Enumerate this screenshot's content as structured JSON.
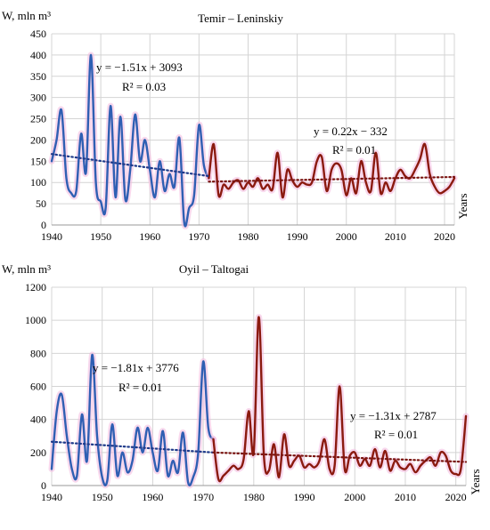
{
  "chart_data": [
    {
      "type": "line",
      "title": "Temir – Leninskiy",
      "ylabel": "W, mln m³",
      "xlabel": "Years",
      "xlim": [
        1940,
        2022
      ],
      "ylim": [
        0,
        450
      ],
      "yticks": [
        0,
        50,
        100,
        150,
        200,
        250,
        300,
        350,
        400,
        450
      ],
      "xticks": [
        1940,
        1950,
        1960,
        1970,
        1980,
        1990,
        2000,
        2010,
        2020
      ],
      "grid": true,
      "colors": {
        "early": "#2f5fb3",
        "late": "#8b1a0f",
        "trend": "#1f3a8a",
        "trend_late": "#7a1410",
        "glow": "#f2b8de"
      },
      "series": [
        {
          "x": [
            1940,
            1941,
            1942,
            1943,
            1944,
            1945,
            1946,
            1947,
            1948,
            1949,
            1950,
            1951,
            1952,
            1953,
            1954,
            1955,
            1956,
            1957,
            1958,
            1959,
            1960,
            1961,
            1962,
            1963,
            1964,
            1965,
            1966,
            1967,
            1968,
            1969,
            1970,
            1971,
            1972
          ],
          "values": [
            150,
            200,
            270,
            110,
            75,
            80,
            215,
            125,
            400,
            100,
            55,
            40,
            280,
            65,
            255,
            60,
            130,
            260,
            150,
            200,
            130,
            65,
            150,
            80,
            120,
            90,
            205,
            5,
            40,
            70,
            235,
            140,
            110
          ]
        },
        {
          "x": [
            1972,
            1973,
            1974,
            1975,
            1976,
            1977,
            1978,
            1979,
            1980,
            1981,
            1982,
            1983,
            1984,
            1985,
            1986,
            1987,
            1988,
            1989,
            1990,
            1991,
            1992,
            1993,
            1994,
            1995,
            1996,
            1997,
            1998,
            1999,
            2000,
            2001,
            2002,
            2003,
            2004,
            2005,
            2006,
            2007,
            2008,
            2009,
            2010,
            2011,
            2012,
            2013,
            2014,
            2015,
            2016,
            2017,
            2018,
            2019,
            2020,
            2021,
            2022
          ],
          "values": [
            110,
            190,
            70,
            95,
            85,
            100,
            105,
            85,
            100,
            90,
            110,
            85,
            95,
            85,
            170,
            65,
            130,
            105,
            90,
            100,
            95,
            100,
            150,
            160,
            80,
            130,
            145,
            130,
            70,
            110,
            75,
            150,
            100,
            80,
            170,
            75,
            100,
            80,
            110,
            130,
            115,
            110,
            130,
            155,
            190,
            120,
            90,
            75,
            80,
            90,
            110
          ]
        }
      ],
      "trends": [
        {
          "x": [
            1940,
            1972
          ],
          "values": [
            167,
            115
          ],
          "equation": "y = −1.51x + 3093",
          "r2": "R² = 0.03"
        },
        {
          "x": [
            1972,
            2022
          ],
          "values": [
            102,
            113
          ],
          "equation": "y = 0.22x − 332",
          "r2": "R² = 0.01"
        }
      ]
    },
    {
      "type": "line",
      "title": "Oyil – Taltogai",
      "ylabel": "W, mln m³",
      "xlabel": "Years",
      "xlim": [
        1940,
        2022
      ],
      "ylim": [
        0,
        1200
      ],
      "yticks": [
        0,
        200,
        400,
        600,
        800,
        1000,
        1200
      ],
      "xticks": [
        1940,
        1950,
        1960,
        1970,
        1980,
        1990,
        2000,
        2010,
        2020
      ],
      "grid": true,
      "colors": {
        "early": "#2f5fb3",
        "late": "#8b1a0f",
        "trend": "#1f3a8a",
        "trend_late": "#7a1410",
        "glow": "#f2b8de"
      },
      "series": [
        {
          "x": [
            1940,
            1941,
            1942,
            1943,
            1944,
            1945,
            1946,
            1947,
            1948,
            1949,
            1950,
            1951,
            1952,
            1953,
            1954,
            1955,
            1956,
            1957,
            1958,
            1959,
            1960,
            1961,
            1962,
            1963,
            1964,
            1965,
            1966,
            1967,
            1968,
            1969,
            1970,
            1971,
            1972
          ],
          "values": [
            100,
            450,
            550,
            300,
            100,
            60,
            430,
            150,
            790,
            300,
            50,
            30,
            370,
            60,
            200,
            80,
            150,
            350,
            200,
            350,
            200,
            90,
            330,
            60,
            150,
            80,
            320,
            20,
            50,
            200,
            750,
            350,
            280
          ]
        },
        {
          "x": [
            1972,
            1973,
            1974,
            1975,
            1976,
            1977,
            1978,
            1979,
            1980,
            1981,
            1982,
            1983,
            1984,
            1985,
            1986,
            1987,
            1988,
            1989,
            1990,
            1991,
            1992,
            1993,
            1994,
            1995,
            1996,
            1997,
            1998,
            1999,
            2000,
            2001,
            2002,
            2003,
            2004,
            2005,
            2006,
            2007,
            2008,
            2009,
            2010,
            2011,
            2012,
            2013,
            2014,
            2015,
            2016,
            2017,
            2018,
            2019,
            2020,
            2021,
            2022
          ],
          "values": [
            280,
            40,
            60,
            90,
            120,
            100,
            160,
            450,
            200,
            1020,
            180,
            90,
            250,
            50,
            310,
            120,
            150,
            180,
            110,
            130,
            110,
            150,
            280,
            100,
            120,
            600,
            100,
            180,
            200,
            120,
            160,
            120,
            220,
            110,
            210,
            90,
            150,
            110,
            100,
            130,
            80,
            120,
            150,
            170,
            120,
            200,
            180,
            90,
            70,
            100,
            420
          ]
        }
      ],
      "trends": [
        {
          "x": [
            1940,
            1972
          ],
          "values": [
            265,
            200
          ],
          "equation": "y = −1.81x + 3776",
          "r2": "R² = 0.01"
        },
        {
          "x": [
            1972,
            2022
          ],
          "values": [
            200,
            143
          ],
          "equation": "y = −1.31x + 2787",
          "r2": "R² = 0.01"
        }
      ]
    }
  ]
}
